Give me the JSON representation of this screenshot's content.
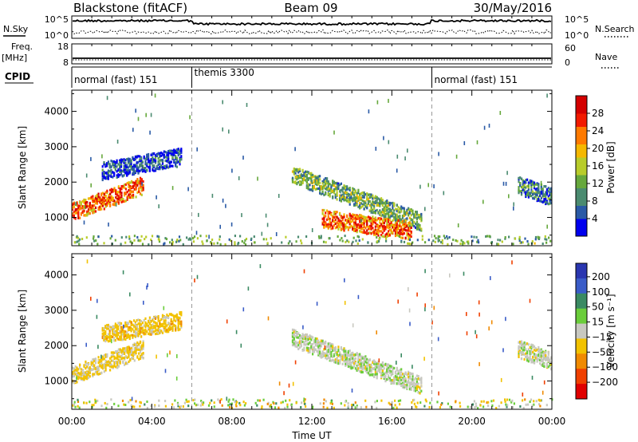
{
  "header": {
    "station": "Blackstone (fitACF)",
    "beam": "Beam 09",
    "date": "30/May/2016"
  },
  "side_labels": {
    "nsky": "N.Sky",
    "nsearch": "N.Search",
    "freq": "Freq.",
    "freq_unit": "[MHz]",
    "cpid": "CPID",
    "nave": "Nave"
  },
  "noise_axis": {
    "left_top": "10^5",
    "left_bottom": "10^0",
    "right_top": "10^5",
    "right_bottom": "10^0"
  },
  "freq_axis": {
    "left_top": "18",
    "left_bottom": "8",
    "right_top": "60",
    "right_bottom": "0"
  },
  "cpid_modes": [
    {
      "label": "normal (fast) 151",
      "start_hour": 0
    },
    {
      "label": "themis 3300",
      "start_hour": 6
    },
    {
      "label": "normal (fast) 151",
      "start_hour": 18
    }
  ],
  "time_axis": {
    "label": "Time UT",
    "ticks": [
      "00:00",
      "04:00",
      "08:00",
      "12:00",
      "16:00",
      "20:00",
      "00:00"
    ]
  },
  "colors": {
    "power_scale": [
      "#0000ee",
      "#2a5aa6",
      "#4b8b70",
      "#66a83c",
      "#b8cc2a",
      "#f5b800",
      "#ff7a00",
      "#f21a00",
      "#d40000"
    ],
    "velocity_scale": [
      "#2a36b0",
      "#3a5cc8",
      "#3a8a62",
      "#6acd3a",
      "#c8c8c0",
      "#f2c200",
      "#f08a00",
      "#f04000",
      "#e00000"
    ]
  },
  "chart_data": [
    {
      "type": "heatmap",
      "title": "",
      "xlabel": "Time UT",
      "ylabel": "Slant Range [km]",
      "xlim": [
        0,
        24
      ],
      "ylim": [
        200,
        4600
      ],
      "y_ticks": [
        1000,
        2000,
        3000,
        4000
      ],
      "colorbar": {
        "label": "Power [dB]",
        "range": [
          0,
          32
        ],
        "ticks": [
          4,
          8,
          12,
          16,
          20,
          24,
          28
        ]
      },
      "features": [
        {
          "name": "band",
          "t_start": 0.0,
          "t_end": 3.6,
          "r_start": 1150,
          "r_end": 1900,
          "level": 26
        },
        {
          "name": "band",
          "t_start": 1.5,
          "t_end": 5.5,
          "r_start": 2300,
          "r_end": 2700,
          "level": 6
        },
        {
          "name": "band",
          "t_start": 11.0,
          "t_end": 17.5,
          "r_start": 2200,
          "r_end": 850,
          "level": 14
        },
        {
          "name": "band",
          "t_start": 12.5,
          "t_end": 17.0,
          "r_start": 950,
          "r_end": 600,
          "level": 26
        },
        {
          "name": "band",
          "t_start": 22.3,
          "t_end": 24.0,
          "r_start": 1900,
          "r_end": 1550,
          "level": 10
        }
      ]
    },
    {
      "type": "heatmap",
      "title": "",
      "xlabel": "Time UT",
      "ylabel": "Slant Range [km]",
      "xlim": [
        0,
        24
      ],
      "ylim": [
        200,
        4600
      ],
      "y_ticks": [
        1000,
        2000,
        3000,
        4000
      ],
      "colorbar": {
        "label": "Velocity [m s⁻¹]",
        "range": [
          -250,
          250
        ],
        "ticks": [
          200,
          100,
          50,
          15,
          -15,
          -50,
          -100,
          -200
        ]
      },
      "features": [
        {
          "name": "band",
          "t_start": 0.0,
          "t_end": 3.6,
          "r_start": 1150,
          "r_end": 1900,
          "level": -20
        },
        {
          "name": "band",
          "t_start": 1.5,
          "t_end": 5.5,
          "r_start": 2300,
          "r_end": 2700,
          "level": -30
        },
        {
          "name": "band",
          "t_start": 11.0,
          "t_end": 17.5,
          "r_start": 2200,
          "r_end": 850,
          "level": 5
        },
        {
          "name": "band",
          "t_start": 22.3,
          "t_end": 24.0,
          "r_start": 1900,
          "r_end": 1550,
          "level": 0
        }
      ]
    }
  ]
}
